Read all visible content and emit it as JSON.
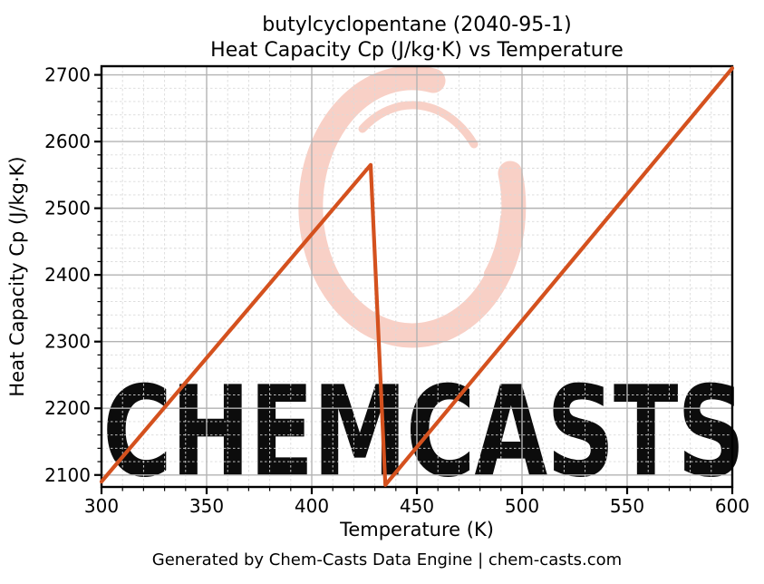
{
  "title": {
    "line1": "butylcyclopentane (2040-95-1)",
    "line2": "Heat Capacity Cp (J/kg·K) vs Temperature"
  },
  "footer": {
    "text": "Generated by Chem-Casts Data Engine | chem-casts.com",
    "color": "#555555"
  },
  "watermark": {
    "text": "CHEMCASTS",
    "color": "#f8d0c6"
  },
  "chart_data": {
    "type": "line",
    "title": "butylcyclopentane (2040-95-1) — Heat Capacity Cp (J/kg·K) vs Temperature",
    "xlabel": "Temperature (K)",
    "ylabel": "Heat Capacity Cp (J/kg·K)",
    "xlim": [
      300,
      600
    ],
    "ylim": [
      2082,
      2713
    ],
    "x_major_ticks": [
      300,
      350,
      400,
      450,
      500,
      550,
      600
    ],
    "y_major_ticks": [
      2100,
      2200,
      2300,
      2400,
      2500,
      2600,
      2700
    ],
    "x_minor_step": 10,
    "y_minor_step": 20,
    "grid": {
      "major": "solid gray",
      "minor": "dashed light gray"
    },
    "legend": "none",
    "series": [
      {
        "name": "Heat Capacity Cp",
        "color": "#d4511e",
        "line_width": 4.2,
        "x": [
          300,
          428,
          435,
          600
        ],
        "y": [
          2090,
          2565,
          2085,
          2710
        ],
        "note": "linear rise from (300 K, 2090) to peak (≈428 K, ≈2565), sharp drop to (≈435 K, ≈2085), then linear rise to (600 K, 2710)"
      }
    ]
  }
}
